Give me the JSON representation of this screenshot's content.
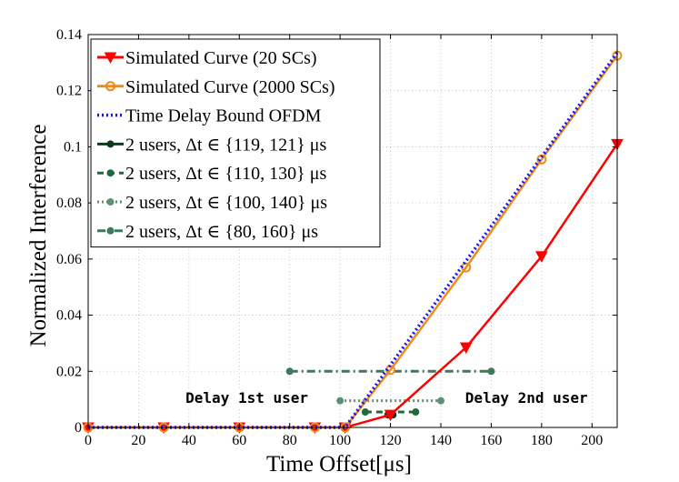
{
  "chart_data": {
    "type": "line",
    "xlabel": "Time Offset[μs]",
    "ylabel": "Normalized Interference",
    "xlim": [
      0,
      210
    ],
    "ylim": [
      0,
      0.14
    ],
    "x_ticks": [
      0,
      20,
      40,
      60,
      80,
      100,
      120,
      140,
      160,
      180,
      200
    ],
    "x_tick_labels": [
      "0",
      "20",
      "40",
      "60",
      "80",
      "100",
      "120",
      "140",
      "160",
      "180",
      "200"
    ],
    "y_ticks": [
      0,
      0.02,
      0.04,
      0.06,
      0.08,
      0.1,
      0.12,
      0.14
    ],
    "y_tick_labels": [
      "0",
      "0.02",
      "0.04",
      "0.06",
      "0.08",
      "0.1",
      "0.12",
      "0.14"
    ],
    "legend_position": "top-left",
    "series": [
      {
        "name": "Simulated Curve (20 SCs)",
        "color": "#ff0000",
        "style": "solid",
        "marker": "triangle-down",
        "x": [
          0,
          30,
          60,
          90,
          102,
          120,
          150,
          180,
          210
        ],
        "y": [
          0,
          0,
          0,
          0,
          0,
          0.0045,
          0.0285,
          0.061,
          0.101
        ]
      },
      {
        "name": "Simulated Curve (2000 SCs)",
        "color": "#ee8c1a",
        "style": "solid",
        "marker": "circle-open",
        "x": [
          0,
          30,
          60,
          90,
          102,
          120,
          150,
          180,
          210
        ],
        "y": [
          0,
          0,
          0,
          0,
          0,
          0.0205,
          0.057,
          0.0955,
          0.1325
        ]
      },
      {
        "name": "Time Delay Bound OFDM",
        "color": "#1414ff",
        "style": "dotted",
        "marker": "none",
        "x": [
          0,
          102,
          210
        ],
        "y": [
          0,
          0,
          0.1335
        ]
      },
      {
        "name": "2 users, Δt ∈ {119, 121} μs",
        "color": "#0b3a1f",
        "style": "solid",
        "marker": "circle",
        "x": [
          119,
          121
        ],
        "y": [
          0.0045,
          0.0045
        ]
      },
      {
        "name": "2 users, Δt ∈ {110, 130} μs",
        "color": "#1e6a3a",
        "style": "dashed",
        "marker": "circle",
        "x": [
          110,
          130
        ],
        "y": [
          0.0055,
          0.0055
        ]
      },
      {
        "name": "2 users, Δt ∈ {100, 140} μs",
        "color": "#5d8f74",
        "style": "dotted",
        "marker": "circle",
        "x": [
          100,
          140
        ],
        "y": [
          0.0095,
          0.0095
        ]
      },
      {
        "name": "2 users, Δt ∈ {80, 160} μs",
        "color": "#3c7a5a",
        "style": "dashdot",
        "marker": "circle",
        "x": [
          80,
          160
        ],
        "y": [
          0.02,
          0.02
        ]
      }
    ],
    "annotations": [
      {
        "text": "Delay 1st user",
        "x": 63,
        "y": 0.0088
      },
      {
        "text": "Delay 2nd user",
        "x": 174,
        "y": 0.0088
      }
    ]
  }
}
